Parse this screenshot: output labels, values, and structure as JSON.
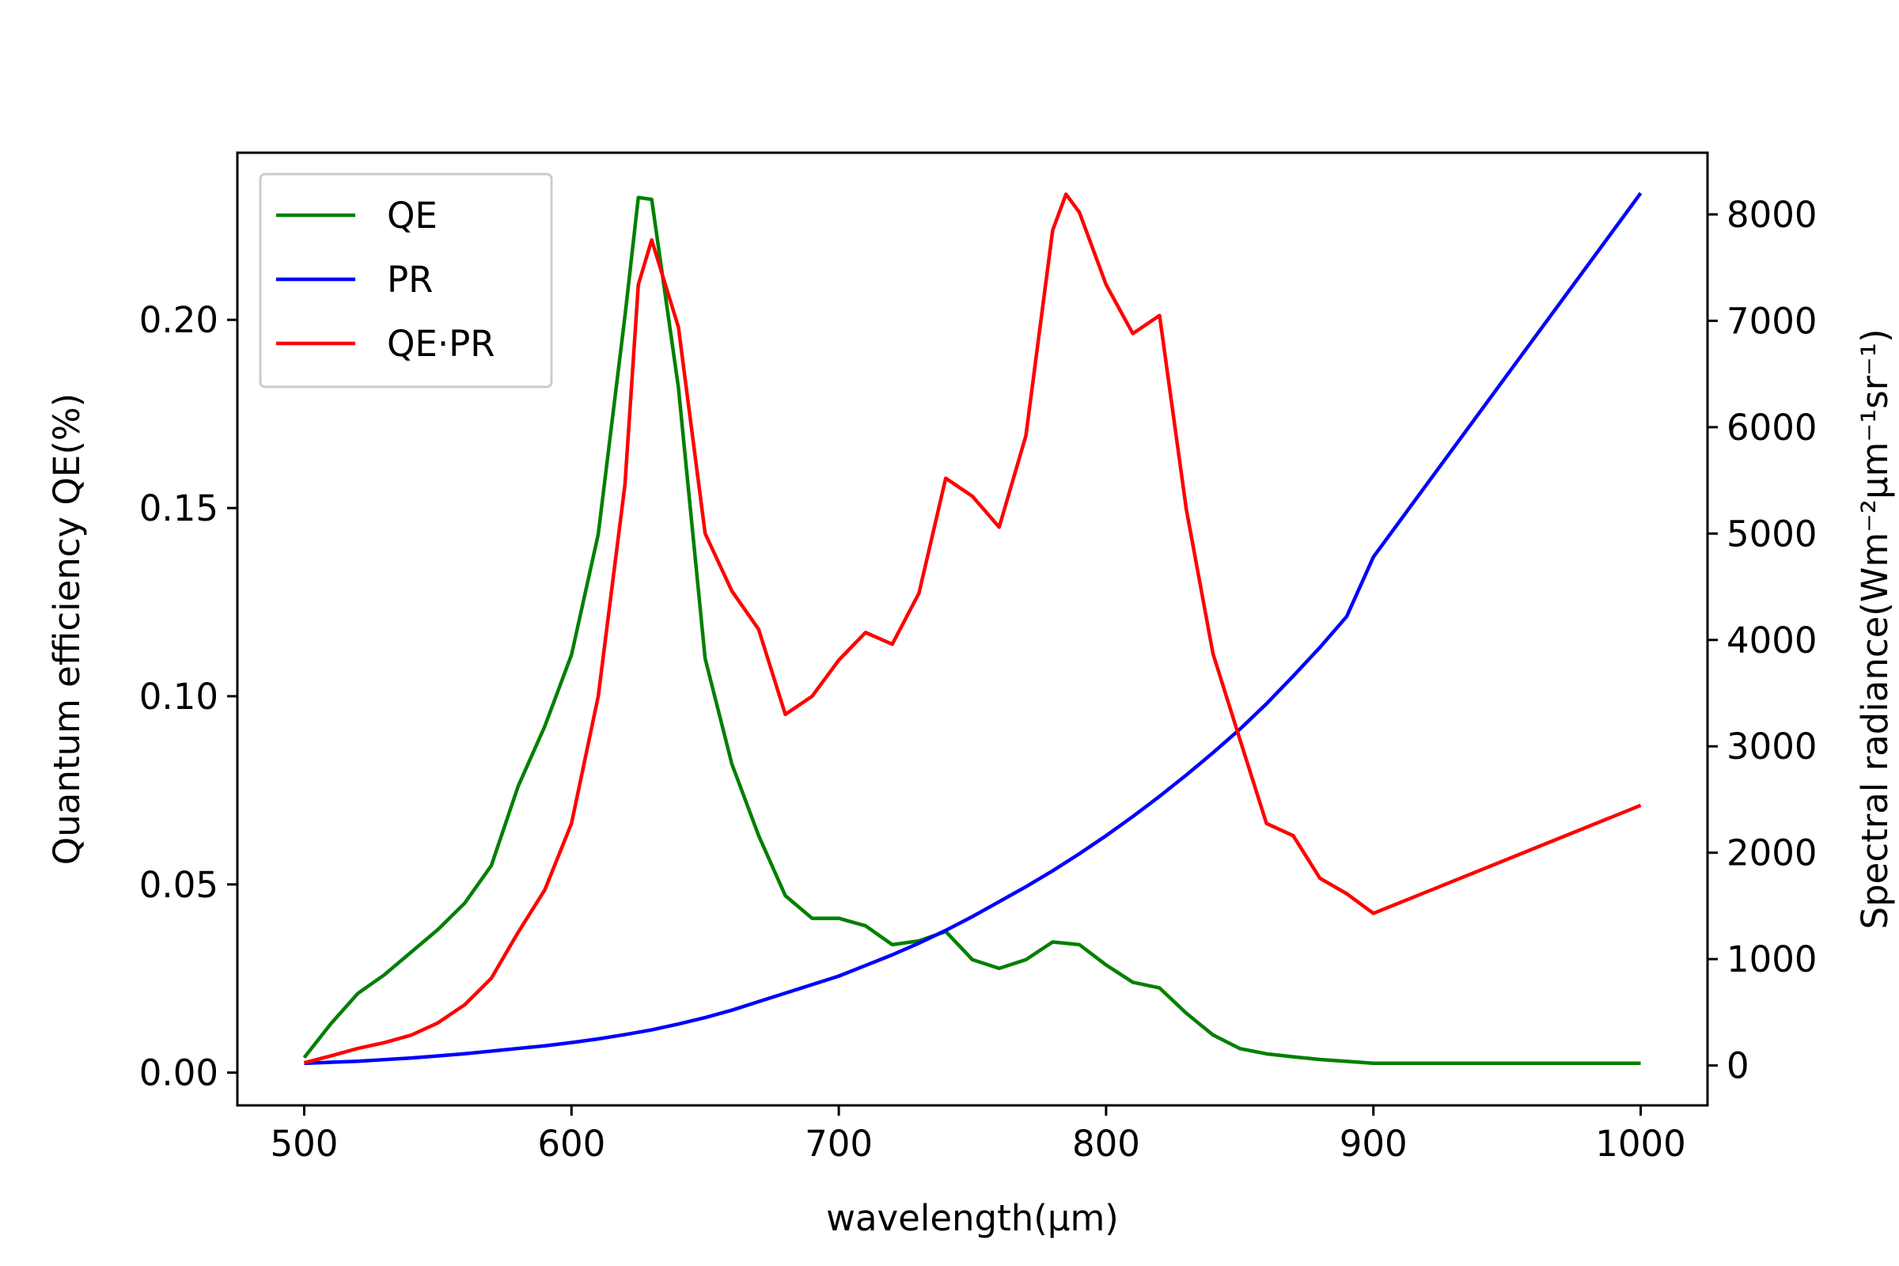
{
  "chart_data": {
    "type": "line",
    "x_label": "wavelength(μm)",
    "y_label": "Quantum efficiency QE(%)",
    "y2_label": "Spectral radiance(Wm⁻²μm⁻¹sr⁻¹)",
    "xlim": [
      475,
      1025
    ],
    "xticks": [
      500,
      600,
      700,
      800,
      900,
      1000
    ],
    "ylim": [
      -0.0087,
      0.2444
    ],
    "yticks": [
      {
        "value": 0,
        "label": "0.00"
      },
      0.05,
      {
        "value": 0.1,
        "label": "0.10"
      },
      0.15,
      {
        "value": 0.2,
        "label": "0.20"
      }
    ],
    "y2lim": [
      -375,
      8580
    ],
    "y2ticks": [
      0,
      1000,
      2000,
      3000,
      4000,
      5000,
      6000,
      7000,
      8000
    ],
    "legend": "upper left",
    "series": [
      {
        "name": "QE",
        "color": "green",
        "axis": "y",
        "x": [
          500,
          510,
          520,
          530,
          540,
          550,
          560,
          570,
          580,
          590,
          600,
          610,
          620,
          625,
          630,
          640,
          650,
          660,
          670,
          680,
          690,
          700,
          710,
          720,
          730,
          740,
          750,
          760,
          770,
          780,
          790,
          800,
          810,
          820,
          830,
          840,
          850,
          860,
          870,
          880,
          890,
          900,
          1000
        ],
        "values": [
          0.004,
          0.013,
          0.021,
          0.026,
          0.032,
          0.038,
          0.045,
          0.055,
          0.076,
          0.092,
          0.111,
          0.143,
          0.201,
          0.2325,
          0.232,
          0.182,
          0.11,
          0.082,
          0.063,
          0.047,
          0.041,
          0.041,
          0.039,
          0.034,
          0.035,
          0.0375,
          0.03,
          0.0277,
          0.03,
          0.0347,
          0.034,
          0.0286,
          0.024,
          0.0225,
          0.0158,
          0.01,
          0.0064,
          0.005,
          0.0042,
          0.0035,
          0.003,
          0.0025,
          0.0025
        ]
      },
      {
        "name": "PR",
        "color": "blue",
        "axis": "y2",
        "x": [
          500,
          510,
          520,
          530,
          540,
          550,
          560,
          570,
          580,
          590,
          600,
          610,
          620,
          630,
          640,
          650,
          660,
          670,
          680,
          690,
          700,
          710,
          720,
          730,
          740,
          750,
          760,
          770,
          780,
          790,
          800,
          810,
          820,
          830,
          840,
          850,
          860,
          870,
          880,
          890,
          900,
          1000
        ],
        "values": [
          20,
          30,
          40,
          55,
          70,
          90,
          110,
          135,
          160,
          185,
          215,
          250,
          290,
          335,
          390,
          450,
          520,
          600,
          680,
          760,
          840,
          940,
          1040,
          1150,
          1270,
          1400,
          1540,
          1680,
          1830,
          1990,
          2160,
          2340,
          2530,
          2730,
          2940,
          3160,
          3400,
          3660,
          3930,
          4220,
          4780,
          8200
        ]
      },
      {
        "name": "QE·PR",
        "color": "red",
        "axis": "y2",
        "x": [
          500,
          510,
          520,
          530,
          540,
          550,
          560,
          570,
          580,
          590,
          600,
          610,
          620,
          625,
          630,
          640,
          650,
          660,
          670,
          680,
          690,
          700,
          710,
          720,
          730,
          740,
          750,
          760,
          770,
          780,
          785,
          790,
          800,
          810,
          820,
          830,
          840,
          850,
          860,
          870,
          880,
          890,
          900,
          1000
        ],
        "values": [
          25,
          90,
          160,
          215,
          285,
          400,
          570,
          820,
          1250,
          1650,
          2275,
          3470,
          5460,
          7340,
          7760,
          6940,
          5000,
          4460,
          4100,
          3300,
          3470,
          3810,
          4070,
          3960,
          4440,
          5520,
          5350,
          5060,
          5920,
          7850,
          8190,
          8020,
          7340,
          6880,
          7050,
          5230,
          3870,
          3070,
          2275,
          2160,
          1760,
          1615,
          1430,
          2445
        ]
      }
    ]
  }
}
